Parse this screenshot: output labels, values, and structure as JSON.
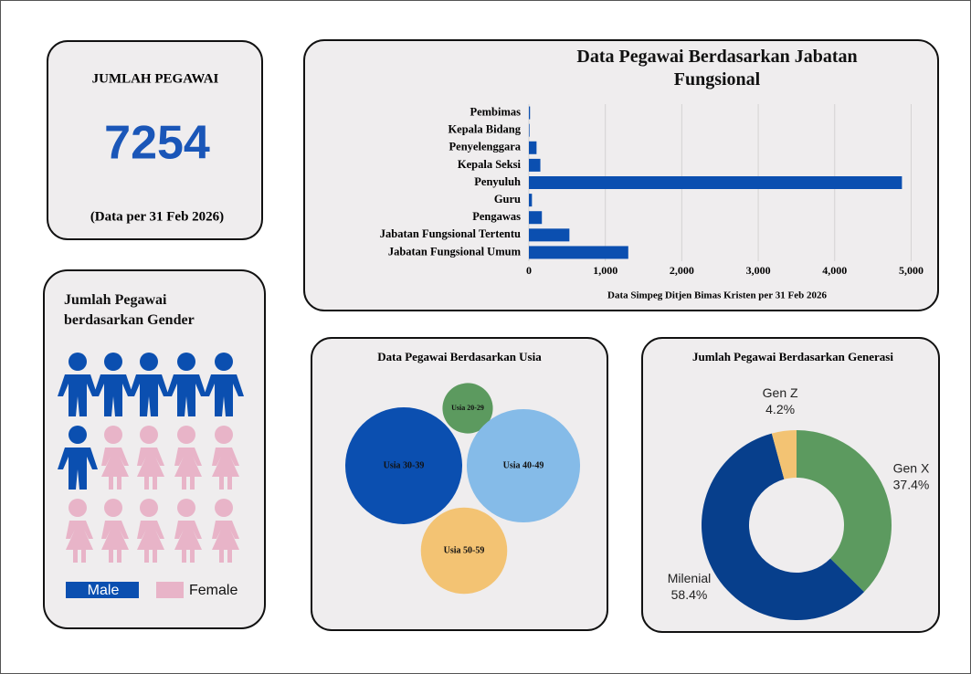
{
  "kpi": {
    "title": "JUMLAH PEGAWAI",
    "value": 7254,
    "note": "(Data per 31 Feb 2026)"
  },
  "chart_data": [
    {
      "type": "hbar",
      "title": "Data Pegawai Berdasarkan Jabatan Fungsional",
      "x_label": "Data Simpeg Ditjen Bimas Kristen per 31 Feb 2026",
      "categories": [
        "Pembimas",
        "Kepala Bidang",
        "Penyelenggara",
        "Kepala Seksi",
        "Penyuluh",
        "Guru",
        "Pengawas",
        "Jabatan Fungsional Tertentu",
        "Jabatan Fungsional Umum"
      ],
      "values": [
        15,
        8,
        100,
        150,
        4880,
        40,
        170,
        530,
        1300
      ],
      "color": "#0b4fb0",
      "xlim": [
        0,
        5150
      ],
      "xticks": [
        0,
        {
          "value": 1000,
          "label": "1,000"
        },
        {
          "value": 2000,
          "label": "2,000"
        },
        {
          "value": 3000,
          "label": "3,000"
        },
        {
          "value": 4000,
          "label": "4,000"
        },
        {
          "value": 5000,
          "label": "5,000"
        }
      ],
      "grid": true
    },
    {
      "type": "pictogram",
      "title": "Jumlah Pegawai berdasarkan Gender",
      "series": [
        {
          "name": "Male",
          "color": "#0b4fb0",
          "values": [
            6
          ]
        },
        {
          "name": "Female",
          "color": "#e8b4c8",
          "values": [
            9
          ]
        }
      ]
    },
    {
      "type": "bubble",
      "title": "Data Pegawai Berdasarkan Usia",
      "categories": [
        "Usia 20-29",
        "Usia 30-39",
        "Usia 40-49",
        "Usia 50-59"
      ],
      "values": [
        504,
        2716,
        2552,
        1481
      ],
      "colors": [
        "#5c9a5f",
        "#0b4fb0",
        "#85bbe8",
        "#f3c373"
      ]
    },
    {
      "type": "pie",
      "title": "Jumlah Pegawai Berdasarkan Generasi",
      "categories": [
        "Gen X",
        "Milenial",
        "Gen Z"
      ],
      "values": [
        37.4,
        58.4,
        4.2
      ],
      "value_labels": [
        "37.4%",
        "58.4%",
        "4.2%"
      ],
      "colors": [
        "#5c9a5f",
        "#073f8c",
        "#f3c373"
      ]
    }
  ]
}
